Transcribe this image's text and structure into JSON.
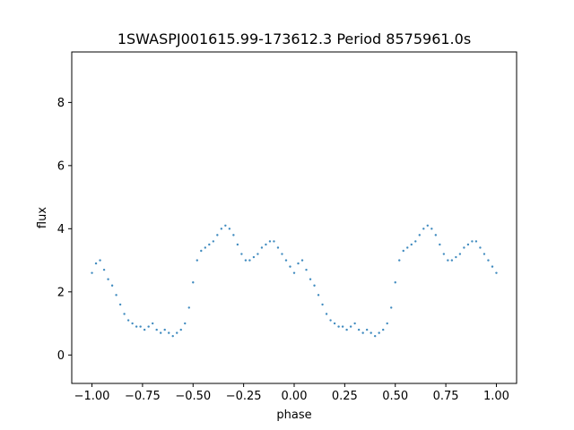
{
  "chart_data": {
    "type": "scatter",
    "title": "1SWASPJ001615.99-173612.3 Period 8575961.0s",
    "xlabel": "phase",
    "ylabel": "flux",
    "xlim": [
      -1.1,
      1.1
    ],
    "ylim": [
      -0.9,
      9.6
    ],
    "xticks": [
      -1.0,
      -0.75,
      -0.5,
      -0.25,
      0.0,
      0.25,
      0.5,
      0.75,
      1.0
    ],
    "xtick_labels": [
      "−1.00",
      "−0.75",
      "−0.50",
      "−0.25",
      "0.00",
      "0.25",
      "0.50",
      "0.75",
      "1.00"
    ],
    "yticks": [
      0,
      2,
      4,
      6,
      8
    ],
    "ytick_labels": [
      "0",
      "2",
      "4",
      "6",
      "8"
    ],
    "grid": false,
    "marker_color": "#1f77b4",
    "series": [
      {
        "x": [
          -1.0,
          -0.98,
          -0.96,
          -0.94,
          -0.92,
          -0.9,
          -0.88,
          -0.86,
          -0.84,
          -0.82,
          -0.8,
          -0.78,
          -0.76,
          -0.74,
          -0.72,
          -0.7,
          -0.68,
          -0.66,
          -0.64,
          -0.62,
          -0.6,
          -0.58,
          -0.56,
          -0.54,
          -0.52,
          -0.5,
          -0.48,
          -0.46,
          -0.44,
          -0.42,
          -0.4,
          -0.38,
          -0.36,
          -0.34,
          -0.32,
          -0.3,
          -0.28,
          -0.26,
          -0.24,
          -0.22,
          -0.2,
          -0.18,
          -0.16,
          -0.14,
          -0.12,
          -0.1,
          -0.08,
          -0.06,
          -0.04,
          -0.02,
          0.0,
          0.02,
          0.04,
          0.06,
          0.08,
          0.1,
          0.12,
          0.14,
          0.16,
          0.18,
          0.2,
          0.22,
          0.24,
          0.26,
          0.28,
          0.3,
          0.32,
          0.34,
          0.36,
          0.38,
          0.4,
          0.42,
          0.44,
          0.46,
          0.48,
          0.5,
          0.52,
          0.54,
          0.56,
          0.58,
          0.6,
          0.62,
          0.64,
          0.66,
          0.68,
          0.7,
          0.72,
          0.74,
          0.76,
          0.78,
          0.8,
          0.82,
          0.84,
          0.86,
          0.88,
          0.9,
          0.92,
          0.94,
          0.96,
          0.98,
          1.0
        ],
        "y": [
          2.6,
          2.9,
          3.0,
          2.7,
          2.4,
          2.2,
          1.9,
          1.6,
          1.3,
          1.1,
          1.0,
          0.9,
          0.9,
          0.8,
          0.9,
          1.0,
          0.8,
          0.7,
          0.8,
          0.7,
          0.6,
          0.7,
          0.8,
          1.0,
          1.5,
          2.3,
          3.0,
          3.3,
          3.4,
          3.5,
          3.6,
          3.8,
          4.0,
          4.1,
          4.0,
          3.8,
          3.5,
          3.2,
          3.0,
          3.0,
          3.1,
          3.2,
          3.4,
          3.5,
          3.6,
          3.6,
          3.4,
          3.2,
          3.0,
          2.8,
          2.6,
          2.9,
          3.0,
          2.7,
          2.4,
          2.2,
          1.9,
          1.6,
          1.3,
          1.1,
          1.0,
          0.9,
          0.9,
          0.8,
          0.9,
          1.0,
          0.8,
          0.7,
          0.8,
          0.7,
          0.6,
          0.7,
          0.8,
          1.0,
          1.5,
          2.3,
          3.0,
          3.3,
          3.4,
          3.5,
          3.6,
          3.8,
          4.0,
          4.1,
          4.0,
          3.8,
          3.5,
          3.2,
          3.0,
          3.0,
          3.1,
          3.2,
          3.4,
          3.5,
          3.6,
          3.6,
          3.4,
          3.2,
          3.0,
          2.8,
          2.6
        ]
      }
    ]
  }
}
